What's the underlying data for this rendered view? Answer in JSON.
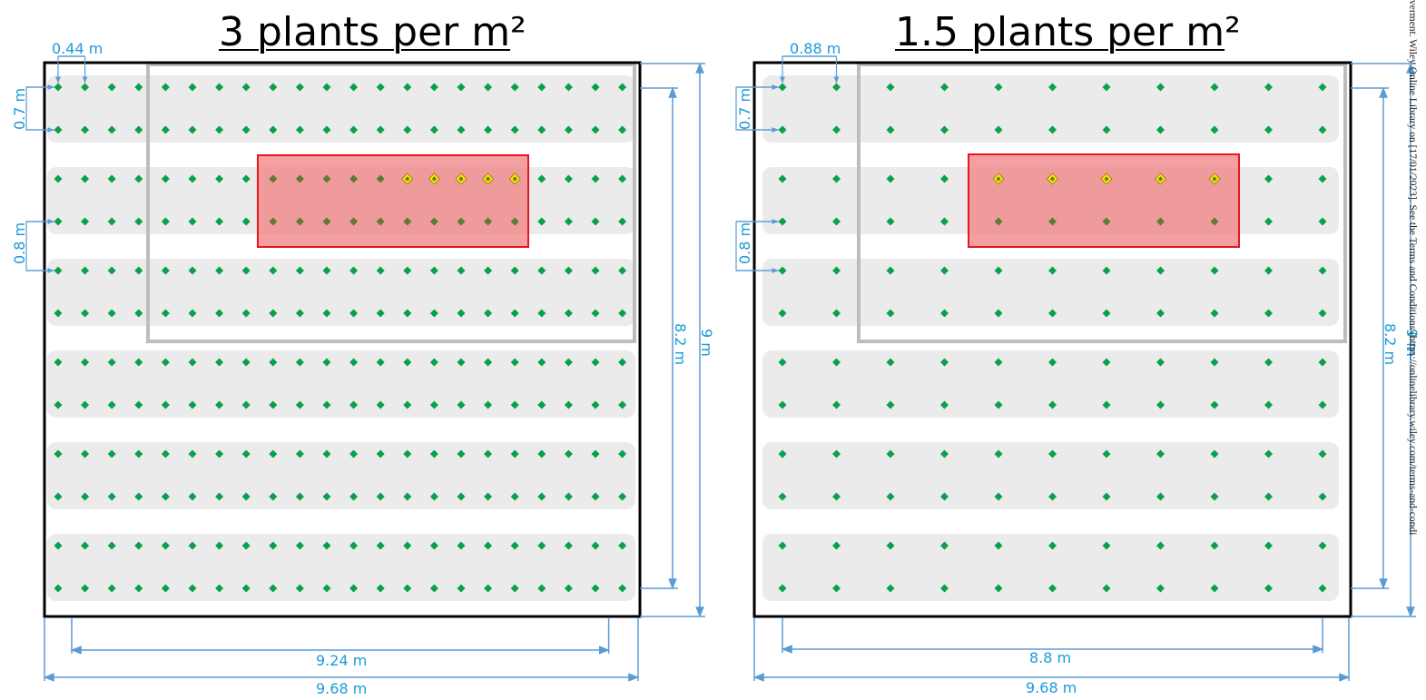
{
  "panels": [
    {
      "title_main": "3 plants per m",
      "title_sup": "²",
      "plant_spacing_label": "0.44 m",
      "row_spacing_label": "0.7 m",
      "bed_gap_label": "0.8 m",
      "inner_height_label": "8.2 m",
      "outer_height_label": "9 m",
      "inner_width_label": "9.24 m",
      "outer_width_label": "9.68 m",
      "plants_per_row": 22,
      "rows": 12,
      "beds": 6
    },
    {
      "title_main": "1.5 plants per m",
      "title_sup": "²",
      "plant_spacing_label": "0.88 m",
      "row_spacing_label": "0.7 m",
      "bed_gap_label": "0.8 m",
      "inner_height_label": "8.2 m",
      "outer_height_label": "9 m",
      "inner_width_label": "8.8 m",
      "outer_width_label": "9.68 m",
      "plants_per_row": 11,
      "rows": 12,
      "beds": 6
    }
  ],
  "watermark": "verment. Wiley Online Library on [17/01/2023]. See the Terms and Conditions (https://onlinelibrary.wiley.com/terms-and-condi",
  "colors": {
    "plant": "#0aa04a",
    "highlight_plant": "#ffe600",
    "bed": "#ebebeb",
    "frame": "#000000",
    "sample_area": "#f08080",
    "sample_border": "#e8161e",
    "subplot_border": "#bdbdbd",
    "dimension_line": "#5b9bd5",
    "dimension_text": "#1a9bd8"
  }
}
